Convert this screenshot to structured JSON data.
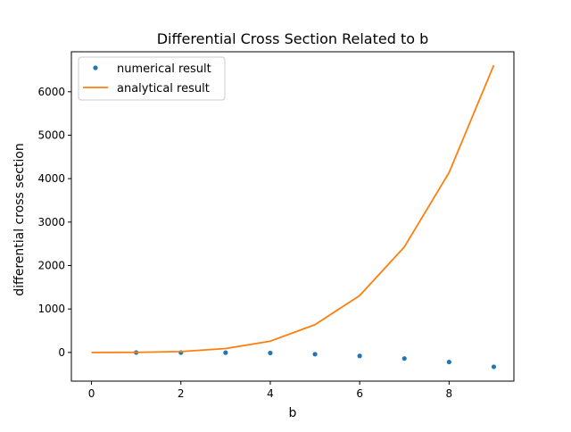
{
  "chart_data": {
    "type": "line",
    "title": "Differential Cross Section Related to b",
    "xlabel": "b",
    "ylabel": "differential cross section",
    "xlim": [
      -0.45,
      9.45
    ],
    "ylim": [
      -660,
      6920
    ],
    "xticks": [
      0,
      2,
      4,
      6,
      8
    ],
    "yticks": [
      0,
      1000,
      2000,
      3000,
      4000,
      5000,
      6000
    ],
    "grid": false,
    "legend_position": "upper-left",
    "series": [
      {
        "name": "numerical result",
        "style": "points",
        "color": "#1f77b4",
        "x": [
          1,
          2,
          3,
          4,
          5,
          6,
          7,
          8,
          9
        ],
        "y": [
          -2,
          -3,
          -5,
          -12,
          -40,
          -80,
          -140,
          -220,
          -330
        ]
      },
      {
        "name": "analytical result",
        "style": "line",
        "color": "#ff7f0e",
        "x": [
          0,
          1,
          2,
          3,
          4,
          5,
          6,
          7,
          8,
          9
        ],
        "y": [
          0,
          2,
          20,
          90,
          260,
          640,
          1310,
          2430,
          4140,
          6610
        ]
      }
    ]
  }
}
